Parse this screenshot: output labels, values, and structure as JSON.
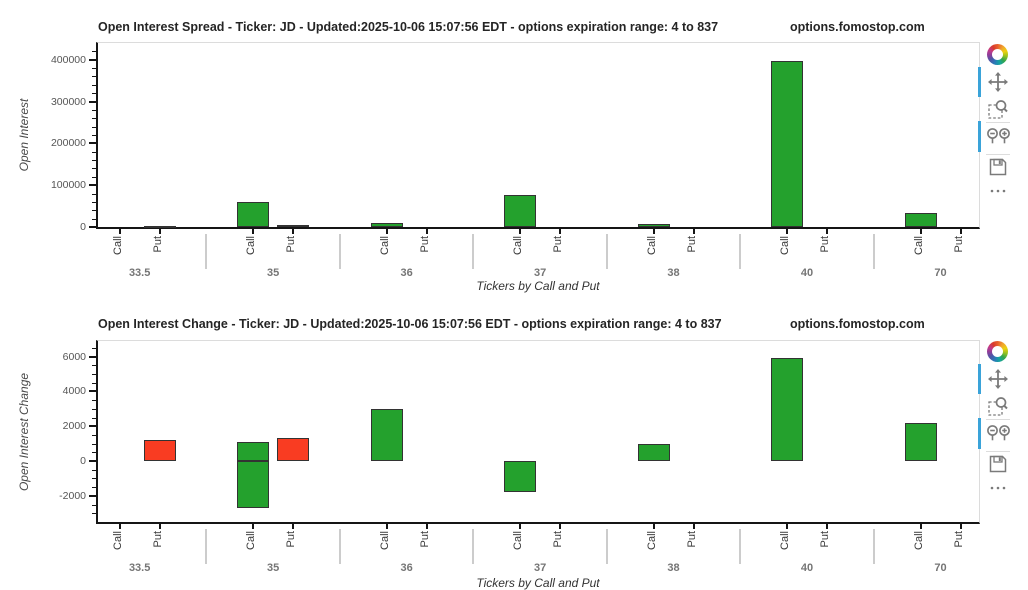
{
  "page": {
    "background": "#ffffff"
  },
  "colors": {
    "call_green": "#24a12d",
    "put_red": "#f93c22",
    "bar_edge": "#333333",
    "modebar_accent": "#3aa3d9",
    "modebar_icon": "#7a7a7a",
    "divider": "#cccccc",
    "axis": "#151515",
    "plot_border": "#dcdcdc"
  },
  "modebar": {
    "buttons": [
      {
        "name": "pan"
      },
      {
        "name": "box-zoom"
      },
      {
        "name": "zoom-in-out"
      },
      {
        "name": "save"
      },
      {
        "name": "more-options"
      }
    ]
  },
  "chart_data": [
    {
      "type": "bar",
      "title": "Open Interest Spread - Ticker: JD - Updated:2025-10-06 15:07:56 EDT - options expiration range: 4 to 837",
      "watermark": "options.fomostop.com",
      "xlabel": "Tickers by Call and Put",
      "ylabel": "Open Interest",
      "groups": [
        "33.5",
        "35",
        "36",
        "37",
        "38",
        "40",
        "70"
      ],
      "bar_labels": [
        "Call",
        "Put"
      ],
      "ylim": [
        0,
        440000
      ],
      "yticks": [
        0,
        100000,
        200000,
        300000,
        400000
      ],
      "ytick_minor_step": 20000,
      "grid": false,
      "legend": "none",
      "series": [
        {
          "name": "Call",
          "color": "#24a12d",
          "values": [
            0,
            60000,
            9000,
            76000,
            7000,
            398000,
            34000
          ]
        },
        {
          "name": "Put",
          "color": "#f93c22",
          "values": [
            2500,
            5000,
            0,
            0,
            0,
            0,
            0
          ]
        }
      ]
    },
    {
      "type": "bar",
      "title": "Open Interest Change - Ticker: JD - Updated:2025-10-06 15:07:56 EDT - options expiration range: 4 to 837",
      "watermark": "options.fomostop.com",
      "xlabel": "Tickers by Call and Put",
      "ylabel": "Open Interest Change",
      "groups": [
        "33.5",
        "35",
        "36",
        "37",
        "38",
        "40",
        "70"
      ],
      "bar_labels": [
        "Call",
        "Put"
      ],
      "ylim": [
        -3500,
        6900
      ],
      "yticks": [
        -2000,
        0,
        2000,
        4000,
        6000
      ],
      "ytick_minor_step": 500,
      "grid": false,
      "legend": "none",
      "series": [
        {
          "name": "Call",
          "color": "#24a12d",
          "values": [
            0,
            [
              1100,
              -2700
            ],
            3000,
            -1800,
            1000,
            5900,
            2200
          ]
        },
        {
          "name": "Put",
          "color": "#f93c22",
          "values": [
            1200,
            1350,
            0,
            0,
            0,
            0,
            0
          ]
        }
      ]
    }
  ]
}
